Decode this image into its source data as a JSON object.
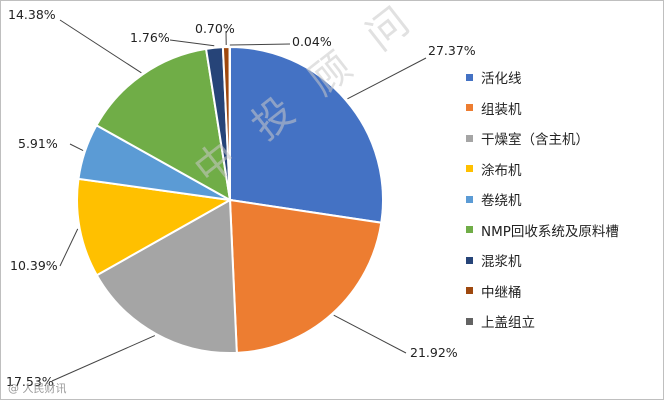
{
  "chart_data": {
    "type": "pie",
    "categories": [
      "活化线",
      "组装机",
      "干燥室（含主机）",
      "涂布机",
      "卷绕机",
      "NMP回收系统及原料槽",
      "混浆机",
      "中继桶",
      "上盖组立"
    ],
    "values": [
      27.37,
      21.92,
      17.53,
      10.39,
      5.91,
      14.38,
      1.76,
      0.7,
      0.04
    ],
    "labels": [
      "27.37%",
      "21.92%",
      "17.53%",
      "10.39%",
      "5.91%",
      "14.38%",
      "1.76%",
      "0.70%",
      "0.04%"
    ],
    "colors": [
      "#4472c4",
      "#ed7d31",
      "#a5a5a5",
      "#ffc000",
      "#5b9bd5",
      "#70ad47",
      "#264478",
      "#9e480e",
      "#636363"
    ],
    "legend_position": "right"
  },
  "watermark": "中 投 顾 问",
  "footer_mark": "@ 人民财讯"
}
